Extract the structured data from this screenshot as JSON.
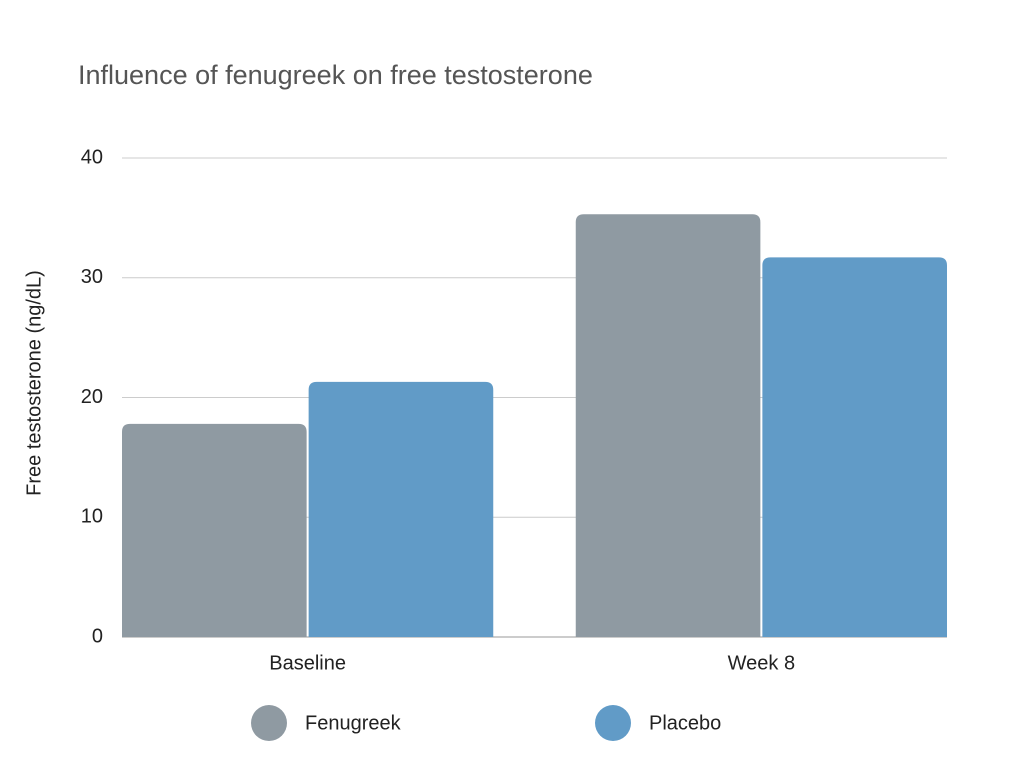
{
  "chart_data": {
    "type": "bar",
    "title": "Influence of fenugreek on free testosterone",
    "y_label": "Free testosterone (ng/dL)",
    "categories": [
      "Baseline",
      "Week 8"
    ],
    "series": [
      {
        "name": "Fenugreek",
        "color": "#8f9aa2",
        "values": [
          17.8,
          35.3
        ]
      },
      {
        "name": "Placebo",
        "color": "#619bc7",
        "values": [
          21.3,
          31.7
        ]
      }
    ],
    "ylim": [
      0,
      40
    ],
    "yticks": [
      0,
      10,
      20,
      30,
      40
    ],
    "grid": true,
    "legend": "bottom"
  }
}
